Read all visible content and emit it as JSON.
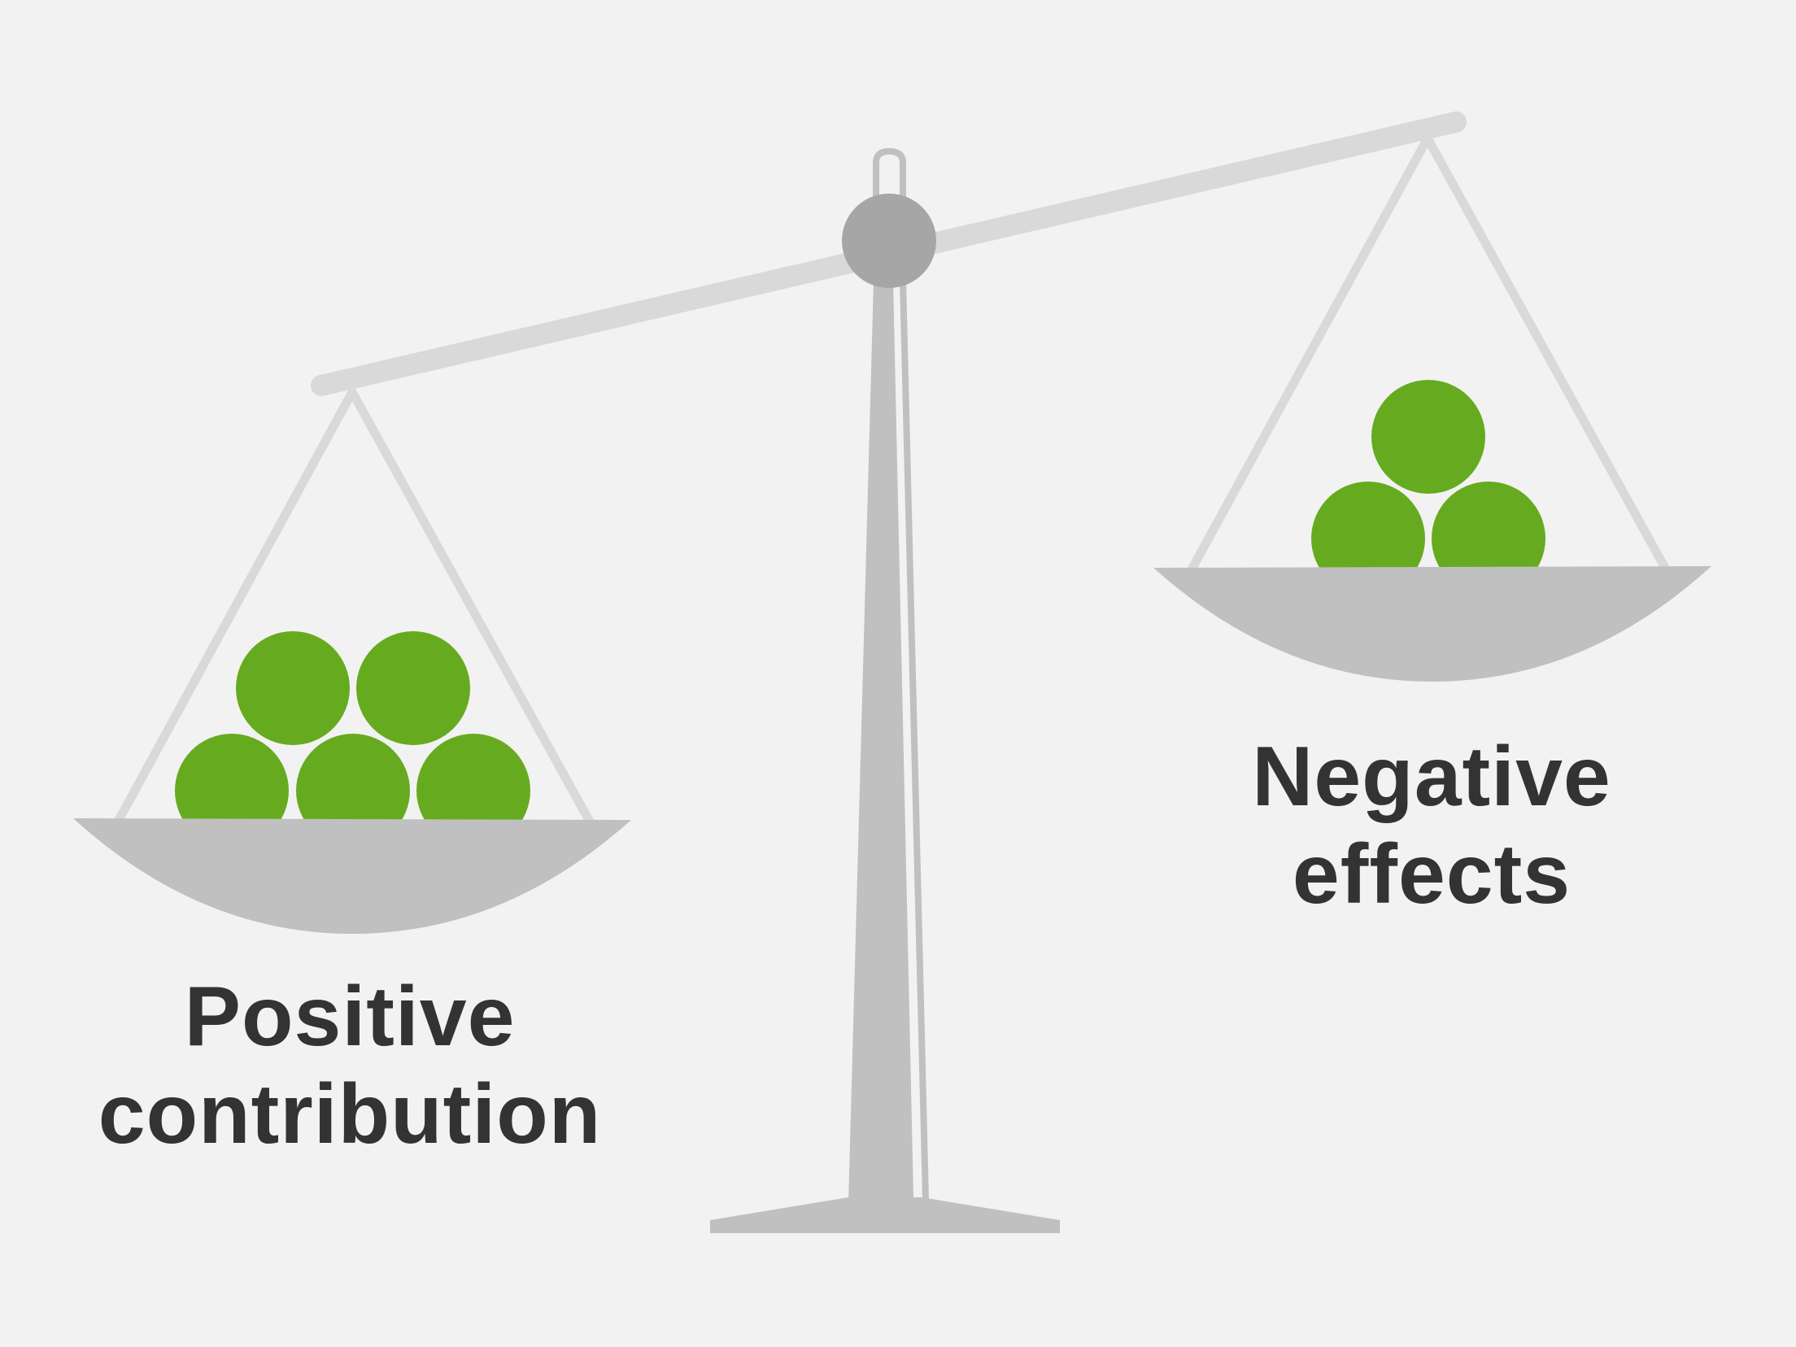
{
  "labels": {
    "left": [
      "Positive",
      "contribution"
    ],
    "right": [
      "Negative",
      "effects"
    ]
  },
  "left_pan": {
    "ball_count": 5
  },
  "right_pan": {
    "ball_count": 3
  },
  "colors": {
    "background": "#f2f2f2",
    "beam": "#d9d9d9",
    "stand": "#c0c0c0",
    "pivot": "#a6a6a6",
    "pan": "#c0c0c0",
    "strings": "#d9d9d9",
    "ball": "#66ab1f",
    "text": "#333333"
  }
}
